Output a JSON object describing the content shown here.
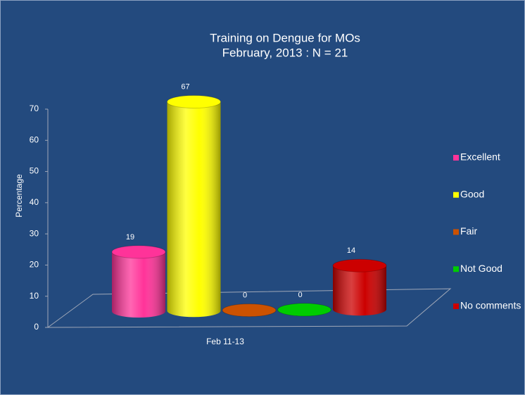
{
  "chart_data": {
    "type": "bar",
    "title": "Training on Dengue for MOs",
    "subtitle": "February, 2013 : N = 21",
    "ylabel": "Percentage",
    "categories": [
      "Feb 11-13"
    ],
    "series": [
      {
        "name": "Excellent",
        "color": "#ff3399",
        "values": [
          19
        ]
      },
      {
        "name": "Good",
        "color": "#ffff00",
        "values": [
          67
        ]
      },
      {
        "name": "Fair",
        "color": "#cc5200",
        "values": [
          0
        ]
      },
      {
        "name": "Not Good",
        "color": "#00cc00",
        "values": [
          0
        ]
      },
      {
        "name": "No comments",
        "color": "#cc0000",
        "values": [
          14
        ]
      }
    ],
    "ylim": [
      0,
      70
    ],
    "yticks": [
      0,
      10,
      20,
      30,
      40,
      50,
      60,
      70
    ],
    "grid": false,
    "legend": "right"
  }
}
